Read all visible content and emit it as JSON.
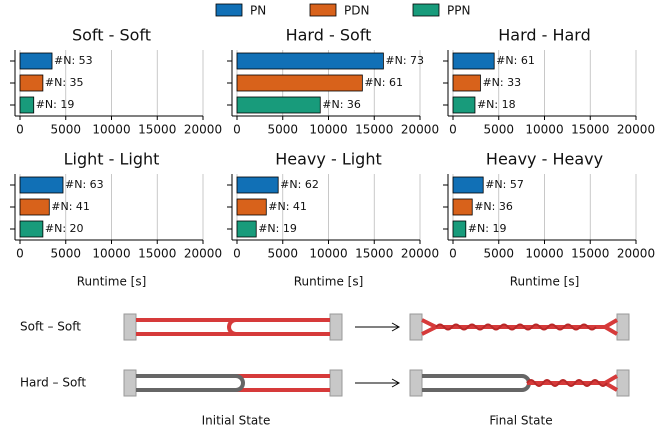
{
  "chart_data": [
    {
      "type": "bar",
      "orientation": "horizontal",
      "title": "Soft - Soft",
      "xlim": [
        0,
        20000
      ],
      "xticks": [
        0,
        5000,
        10000,
        15000,
        20000
      ],
      "grid": true,
      "legend": "top",
      "series": [
        {
          "name": "PN",
          "color": "#1170b6",
          "values": [
            3500
          ],
          "labels": [
            "#N: 53"
          ]
        },
        {
          "name": "PDN",
          "color": "#d8621b",
          "values": [
            2500
          ],
          "labels": [
            "#N: 35"
          ]
        },
        {
          "name": "PPN",
          "color": "#189b7b",
          "values": [
            1500
          ],
          "labels": [
            "#N: 19"
          ]
        }
      ]
    },
    {
      "type": "bar",
      "orientation": "horizontal",
      "title": "Hard - Soft",
      "xlim": [
        0,
        20000
      ],
      "xticks": [
        0,
        5000,
        10000,
        15000,
        20000
      ],
      "grid": true,
      "series": [
        {
          "name": "PN",
          "color": "#1170b6",
          "values": [
            16000
          ],
          "labels": [
            "#N: 73"
          ]
        },
        {
          "name": "PDN",
          "color": "#d8621b",
          "values": [
            13700
          ],
          "labels": [
            "#N: 61"
          ]
        },
        {
          "name": "PPN",
          "color": "#189b7b",
          "values": [
            9100
          ],
          "labels": [
            "#N: 36"
          ]
        }
      ]
    },
    {
      "type": "bar",
      "orientation": "horizontal",
      "title": "Hard - Hard",
      "xlim": [
        0,
        20000
      ],
      "xticks": [
        0,
        5000,
        10000,
        15000,
        20000
      ],
      "grid": true,
      "series": [
        {
          "name": "PN",
          "color": "#1170b6",
          "values": [
            4500
          ],
          "labels": [
            "#N: 61"
          ]
        },
        {
          "name": "PDN",
          "color": "#d8621b",
          "values": [
            3000
          ],
          "labels": [
            "#N: 33"
          ]
        },
        {
          "name": "PPN",
          "color": "#189b7b",
          "values": [
            2400
          ],
          "labels": [
            "#N: 18"
          ]
        }
      ]
    },
    {
      "type": "bar",
      "orientation": "horizontal",
      "title": "Light - Light",
      "xlabel": "Runtime [s]",
      "xlim": [
        0,
        20000
      ],
      "xticks": [
        0,
        5000,
        10000,
        15000,
        20000
      ],
      "grid": true,
      "series": [
        {
          "name": "PN",
          "color": "#1170b6",
          "values": [
            4700
          ],
          "labels": [
            "#N: 63"
          ]
        },
        {
          "name": "PDN",
          "color": "#d8621b",
          "values": [
            3200
          ],
          "labels": [
            "#N: 41"
          ]
        },
        {
          "name": "PPN",
          "color": "#189b7b",
          "values": [
            2500
          ],
          "labels": [
            "#N: 20"
          ]
        }
      ]
    },
    {
      "type": "bar",
      "orientation": "horizontal",
      "title": "Heavy - Light",
      "xlabel": "Runtime [s]",
      "xlim": [
        0,
        20000
      ],
      "xticks": [
        0,
        5000,
        10000,
        15000,
        20000
      ],
      "grid": true,
      "series": [
        {
          "name": "PN",
          "color": "#1170b6",
          "values": [
            4500
          ],
          "labels": [
            "#N: 62"
          ]
        },
        {
          "name": "PDN",
          "color": "#d8621b",
          "values": [
            3200
          ],
          "labels": [
            "#N: 41"
          ]
        },
        {
          "name": "PPN",
          "color": "#189b7b",
          "values": [
            2100
          ],
          "labels": [
            "#N: 19"
          ]
        }
      ]
    },
    {
      "type": "bar",
      "orientation": "horizontal",
      "title": "Heavy - Heavy",
      "xlabel": "Runtime [s]",
      "xlim": [
        0,
        20000
      ],
      "xticks": [
        0,
        5000,
        10000,
        15000,
        20000
      ],
      "grid": true,
      "series": [
        {
          "name": "PN",
          "color": "#1170b6",
          "values": [
            3300
          ],
          "labels": [
            "#N: 57"
          ]
        },
        {
          "name": "PDN",
          "color": "#d8621b",
          "values": [
            2100
          ],
          "labels": [
            "#N: 36"
          ]
        },
        {
          "name": "PPN",
          "color": "#189b7b",
          "values": [
            1400
          ],
          "labels": [
            "#N: 19"
          ]
        }
      ]
    }
  ],
  "diagram": {
    "rows": [
      "Soft – Soft",
      "Hard – Soft"
    ],
    "captions": [
      "Initial State",
      "Final State"
    ]
  }
}
